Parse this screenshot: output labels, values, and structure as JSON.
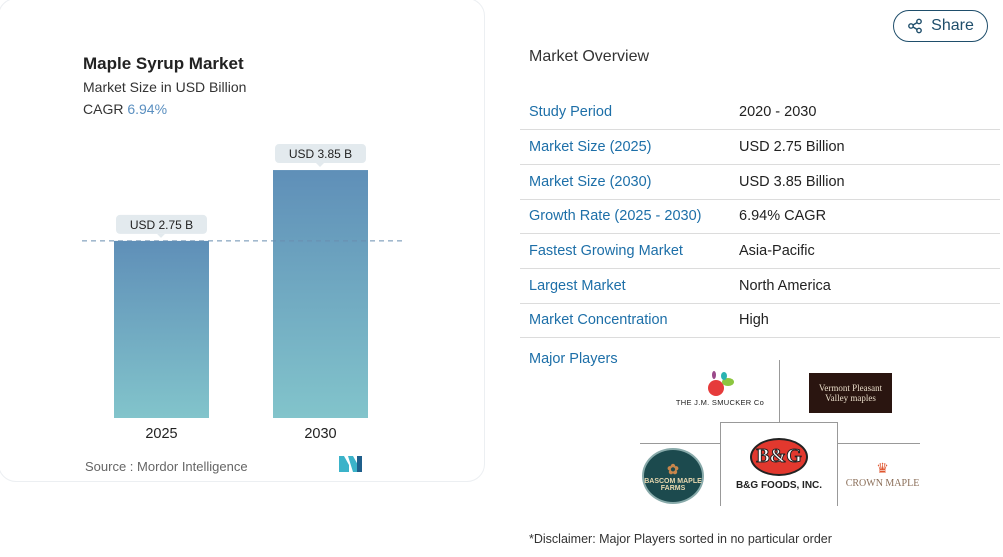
{
  "header": {
    "share_label": "Share"
  },
  "chart_data": {
    "type": "bar",
    "title": "Maple Syrup Market",
    "subtitle": "Market Size in USD Billion",
    "cagr_label": "CAGR",
    "cagr_value": "6.94%",
    "categories": [
      "2025",
      "2030"
    ],
    "values": [
      2.75,
      3.85
    ],
    "data_labels": [
      "USD 2.75 B",
      "USD 3.85 B"
    ],
    "ylim": [
      0,
      4
    ],
    "reference_line": 2.75,
    "source": "Source :  Mordor Intelligence",
    "colors": {
      "bar_top": "#5f8fb8",
      "bar_bottom": "#82c4cb"
    }
  },
  "overview": {
    "title": "Market Overview",
    "rows": [
      {
        "label": "Study Period",
        "value": "2020 - 2030"
      },
      {
        "label": "Market Size (2025)",
        "value": "USD 2.75 Billion"
      },
      {
        "label": "Market Size (2030)",
        "value": "USD 3.85 Billion"
      },
      {
        "label": "Growth Rate (2025 - 2030)",
        "value": "6.94% CAGR"
      },
      {
        "label": "Fastest Growing Market",
        "value": "Asia-Pacific"
      },
      {
        "label": "Largest Market",
        "value": "North America"
      },
      {
        "label": "Market Concentration",
        "value": "High"
      }
    ],
    "major_players_label": "Major Players",
    "players": [
      "THE J.M. SMUCKER Co",
      "Vermont Pleasant Valley maples",
      "BASCOM MAPLE FARMS",
      "B&G FOODS, INC.",
      "CROWN MAPLE"
    ],
    "disclaimer": "*Disclaimer: Major Players sorted in no particular order"
  }
}
